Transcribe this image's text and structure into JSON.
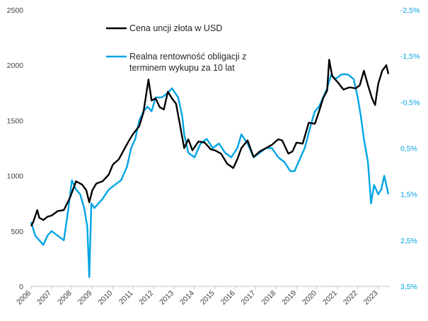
{
  "chart_data": {
    "type": "line",
    "axes": {
      "left": {
        "min": 0,
        "max": 2500,
        "ticks": [
          "0",
          "500",
          "1000",
          "1500",
          "2000",
          "2500"
        ],
        "tick_values": [
          0,
          500,
          1000,
          1500,
          2000,
          2500
        ]
      },
      "right": {
        "min": -2.5,
        "max": 3.5,
        "inverted": true,
        "ticks": [
          "-2,5%",
          "-1,5%",
          "-0,5%",
          "0,5%",
          "1,5%",
          "2,5%",
          "3,5%"
        ],
        "tick_values": [
          -2.5,
          -1.5,
          -0.5,
          0.5,
          1.5,
          2.5,
          3.5
        ]
      },
      "x": {
        "min": 2006,
        "max": 2023.5,
        "ticks": [
          "2006",
          "2007",
          "2008",
          "2009",
          "2010",
          "2011",
          "2012",
          "2013",
          "2014",
          "2015",
          "2016",
          "2017",
          "2018",
          "2019",
          "2020",
          "2021",
          "2022",
          "2023"
        ],
        "tick_values": [
          2006,
          2007,
          2008,
          2009,
          2010,
          2011,
          2012,
          2013,
          2014,
          2015,
          2016,
          2017,
          2018,
          2019,
          2020,
          2021,
          2022,
          2023
        ]
      }
    },
    "series": [
      {
        "name": "Cena uncji złota w USD",
        "color": "#000000",
        "axis": "left",
        "x": [
          2006.0,
          2006.1,
          2006.3,
          2006.4,
          2006.6,
          2006.8,
          2007.0,
          2007.3,
          2007.6,
          2007.9,
          2008.2,
          2008.5,
          2008.7,
          2008.85,
          2009.0,
          2009.2,
          2009.5,
          2009.8,
          2010.0,
          2010.3,
          2010.5,
          2010.8,
          2011.0,
          2011.3,
          2011.5,
          2011.65,
          2011.75,
          2011.9,
          2012.1,
          2012.3,
          2012.5,
          2012.7,
          2012.9,
          2013.1,
          2013.3,
          2013.5,
          2013.7,
          2013.9,
          2014.2,
          2014.5,
          2014.8,
          2015.0,
          2015.3,
          2015.6,
          2015.9,
          2016.1,
          2016.3,
          2016.6,
          2016.9,
          2017.2,
          2017.5,
          2017.8,
          2018.1,
          2018.3,
          2018.6,
          2018.8,
          2019.0,
          2019.3,
          2019.6,
          2019.9,
          2020.1,
          2020.3,
          2020.5,
          2020.6,
          2020.75,
          2021.0,
          2021.3,
          2021.6,
          2021.9,
          2022.1,
          2022.3,
          2022.5,
          2022.7,
          2022.85,
          2023.0,
          2023.2,
          2023.4,
          2023.5
        ],
        "values": [
          545,
          580,
          690,
          620,
          600,
          630,
          640,
          680,
          690,
          800,
          950,
          920,
          870,
          760,
          870,
          930,
          950,
          1010,
          1100,
          1150,
          1220,
          1320,
          1380,
          1450,
          1570,
          1750,
          1870,
          1680,
          1700,
          1620,
          1600,
          1760,
          1700,
          1650,
          1450,
          1250,
          1330,
          1230,
          1310,
          1300,
          1240,
          1230,
          1200,
          1110,
          1070,
          1150,
          1250,
          1320,
          1170,
          1220,
          1250,
          1280,
          1330,
          1320,
          1200,
          1220,
          1300,
          1290,
          1480,
          1470,
          1580,
          1700,
          1770,
          2050,
          1900,
          1850,
          1780,
          1800,
          1790,
          1820,
          1950,
          1820,
          1700,
          1640,
          1830,
          1950,
          2000,
          1920
        ]
      },
      {
        "name": "Realna rentowność obligacji z terminem wykupu za 10 lat",
        "color": "#00a4e4",
        "axis": "right",
        "x": [
          2006.0,
          2006.2,
          2006.4,
          2006.6,
          2006.8,
          2007.0,
          2007.3,
          2007.6,
          2007.8,
          2008.0,
          2008.2,
          2008.4,
          2008.6,
          2008.75,
          2008.85,
          2008.95,
          2009.1,
          2009.3,
          2009.5,
          2009.8,
          2010.1,
          2010.4,
          2010.7,
          2010.9,
          2011.1,
          2011.3,
          2011.5,
          2011.7,
          2011.9,
          2012.1,
          2012.4,
          2012.7,
          2012.9,
          2013.2,
          2013.4,
          2013.5,
          2013.7,
          2014.0,
          2014.3,
          2014.6,
          2014.9,
          2015.2,
          2015.5,
          2015.8,
          2016.1,
          2016.3,
          2016.6,
          2016.9,
          2017.2,
          2017.5,
          2017.8,
          2018.1,
          2018.4,
          2018.7,
          2018.9,
          2019.1,
          2019.4,
          2019.7,
          2019.9,
          2020.1,
          2020.3,
          2020.5,
          2020.7,
          2020.9,
          2021.2,
          2021.5,
          2021.8,
          2022.0,
          2022.15,
          2022.3,
          2022.5,
          2022.65,
          2022.8,
          2023.0,
          2023.15,
          2023.3,
          2023.5
        ],
        "values": [
          2.1,
          2.4,
          2.5,
          2.6,
          2.4,
          2.3,
          2.4,
          2.5,
          1.9,
          1.2,
          1.4,
          1.5,
          1.8,
          2.2,
          3.3,
          1.7,
          1.8,
          1.7,
          1.6,
          1.4,
          1.3,
          1.2,
          0.9,
          0.5,
          0.3,
          -0.1,
          -0.3,
          -0.4,
          -0.3,
          -0.6,
          -0.6,
          -0.7,
          -0.8,
          -0.6,
          -0.2,
          0.2,
          0.6,
          0.7,
          0.4,
          0.3,
          0.5,
          0.4,
          0.6,
          0.7,
          0.5,
          0.2,
          0.4,
          0.7,
          0.6,
          0.5,
          0.5,
          0.7,
          0.8,
          1.0,
          1.0,
          0.8,
          0.5,
          0.0,
          -0.3,
          -0.4,
          -0.6,
          -0.8,
          -1.1,
          -1.0,
          -1.1,
          -1.1,
          -1.0,
          -0.6,
          -0.2,
          0.3,
          0.8,
          1.7,
          1.3,
          1.5,
          1.4,
          1.1,
          1.5
        ]
      }
    ],
    "legend": [
      "Cena uncji złota w USD",
      "Realna rentowność obligacji z",
      "terminem wykupu za 10 lat"
    ],
    "legend_position": "top-left"
  },
  "colors": {
    "gold": "#000000",
    "yield": "#00a4e4",
    "right_axis_text": "#00a0e0"
  }
}
